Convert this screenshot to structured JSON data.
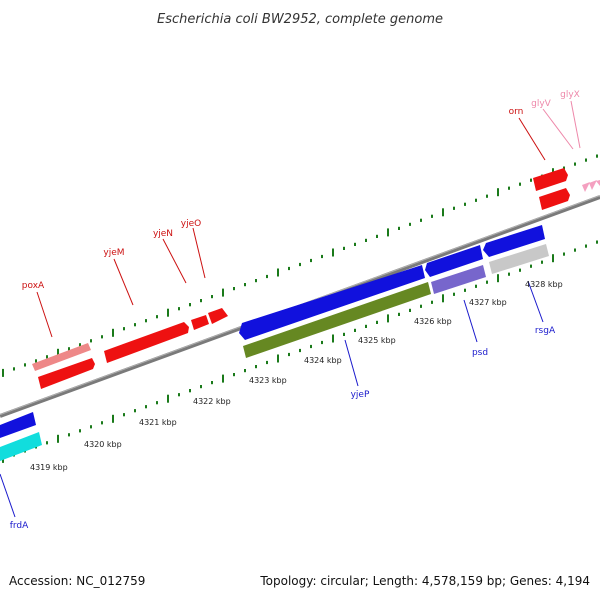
{
  "header": {
    "title": "Escherichia coli BW2952, complete genome"
  },
  "footer": {
    "accession": "Accession: NC_012759",
    "topology": "Topology: circular; Length: 4,578,159 bp; Genes: 4,194"
  },
  "colors": {
    "backbone": "#7a7a7a",
    "tick": "#1a7a1a",
    "forward_gene": "#ee1111",
    "forward_label": "#cc1111",
    "pseudo_gene": "#ee8888",
    "trna": "#f4a0c0",
    "trna_label": "#ee88aa",
    "reverse_gene": "#1111dd",
    "reverse_label": "#1a1acc",
    "cyan_gene": "#11dddd",
    "olive_gene": "#668822",
    "purple_gene": "#7766cc",
    "gray_gene": "#c8c8c8"
  },
  "scale_labels": [
    {
      "text": "4319 kbp"
    },
    {
      "text": "4320 kbp"
    },
    {
      "text": "4321 kbp"
    },
    {
      "text": "4322 kbp"
    },
    {
      "text": "4323 kbp"
    },
    {
      "text": "4324 kbp"
    },
    {
      "text": "4325 kbp"
    },
    {
      "text": "4326 kbp"
    },
    {
      "text": "4327 kbp"
    },
    {
      "text": "4328 kbp"
    }
  ],
  "genes": [
    {
      "name": "poxA",
      "strand": "forward"
    },
    {
      "name": "yjeM",
      "strand": "forward"
    },
    {
      "name": "yjeN",
      "strand": "forward"
    },
    {
      "name": "yjeO",
      "strand": "forward"
    },
    {
      "name": "orn",
      "strand": "forward"
    },
    {
      "name": "glyV",
      "strand": "forward"
    },
    {
      "name": "glyX",
      "strand": "forward"
    },
    {
      "name": "frdA",
      "strand": "reverse"
    },
    {
      "name": "yjeP",
      "strand": "reverse"
    },
    {
      "name": "psd",
      "strand": "reverse"
    },
    {
      "name": "rsgA",
      "strand": "reverse"
    }
  ]
}
